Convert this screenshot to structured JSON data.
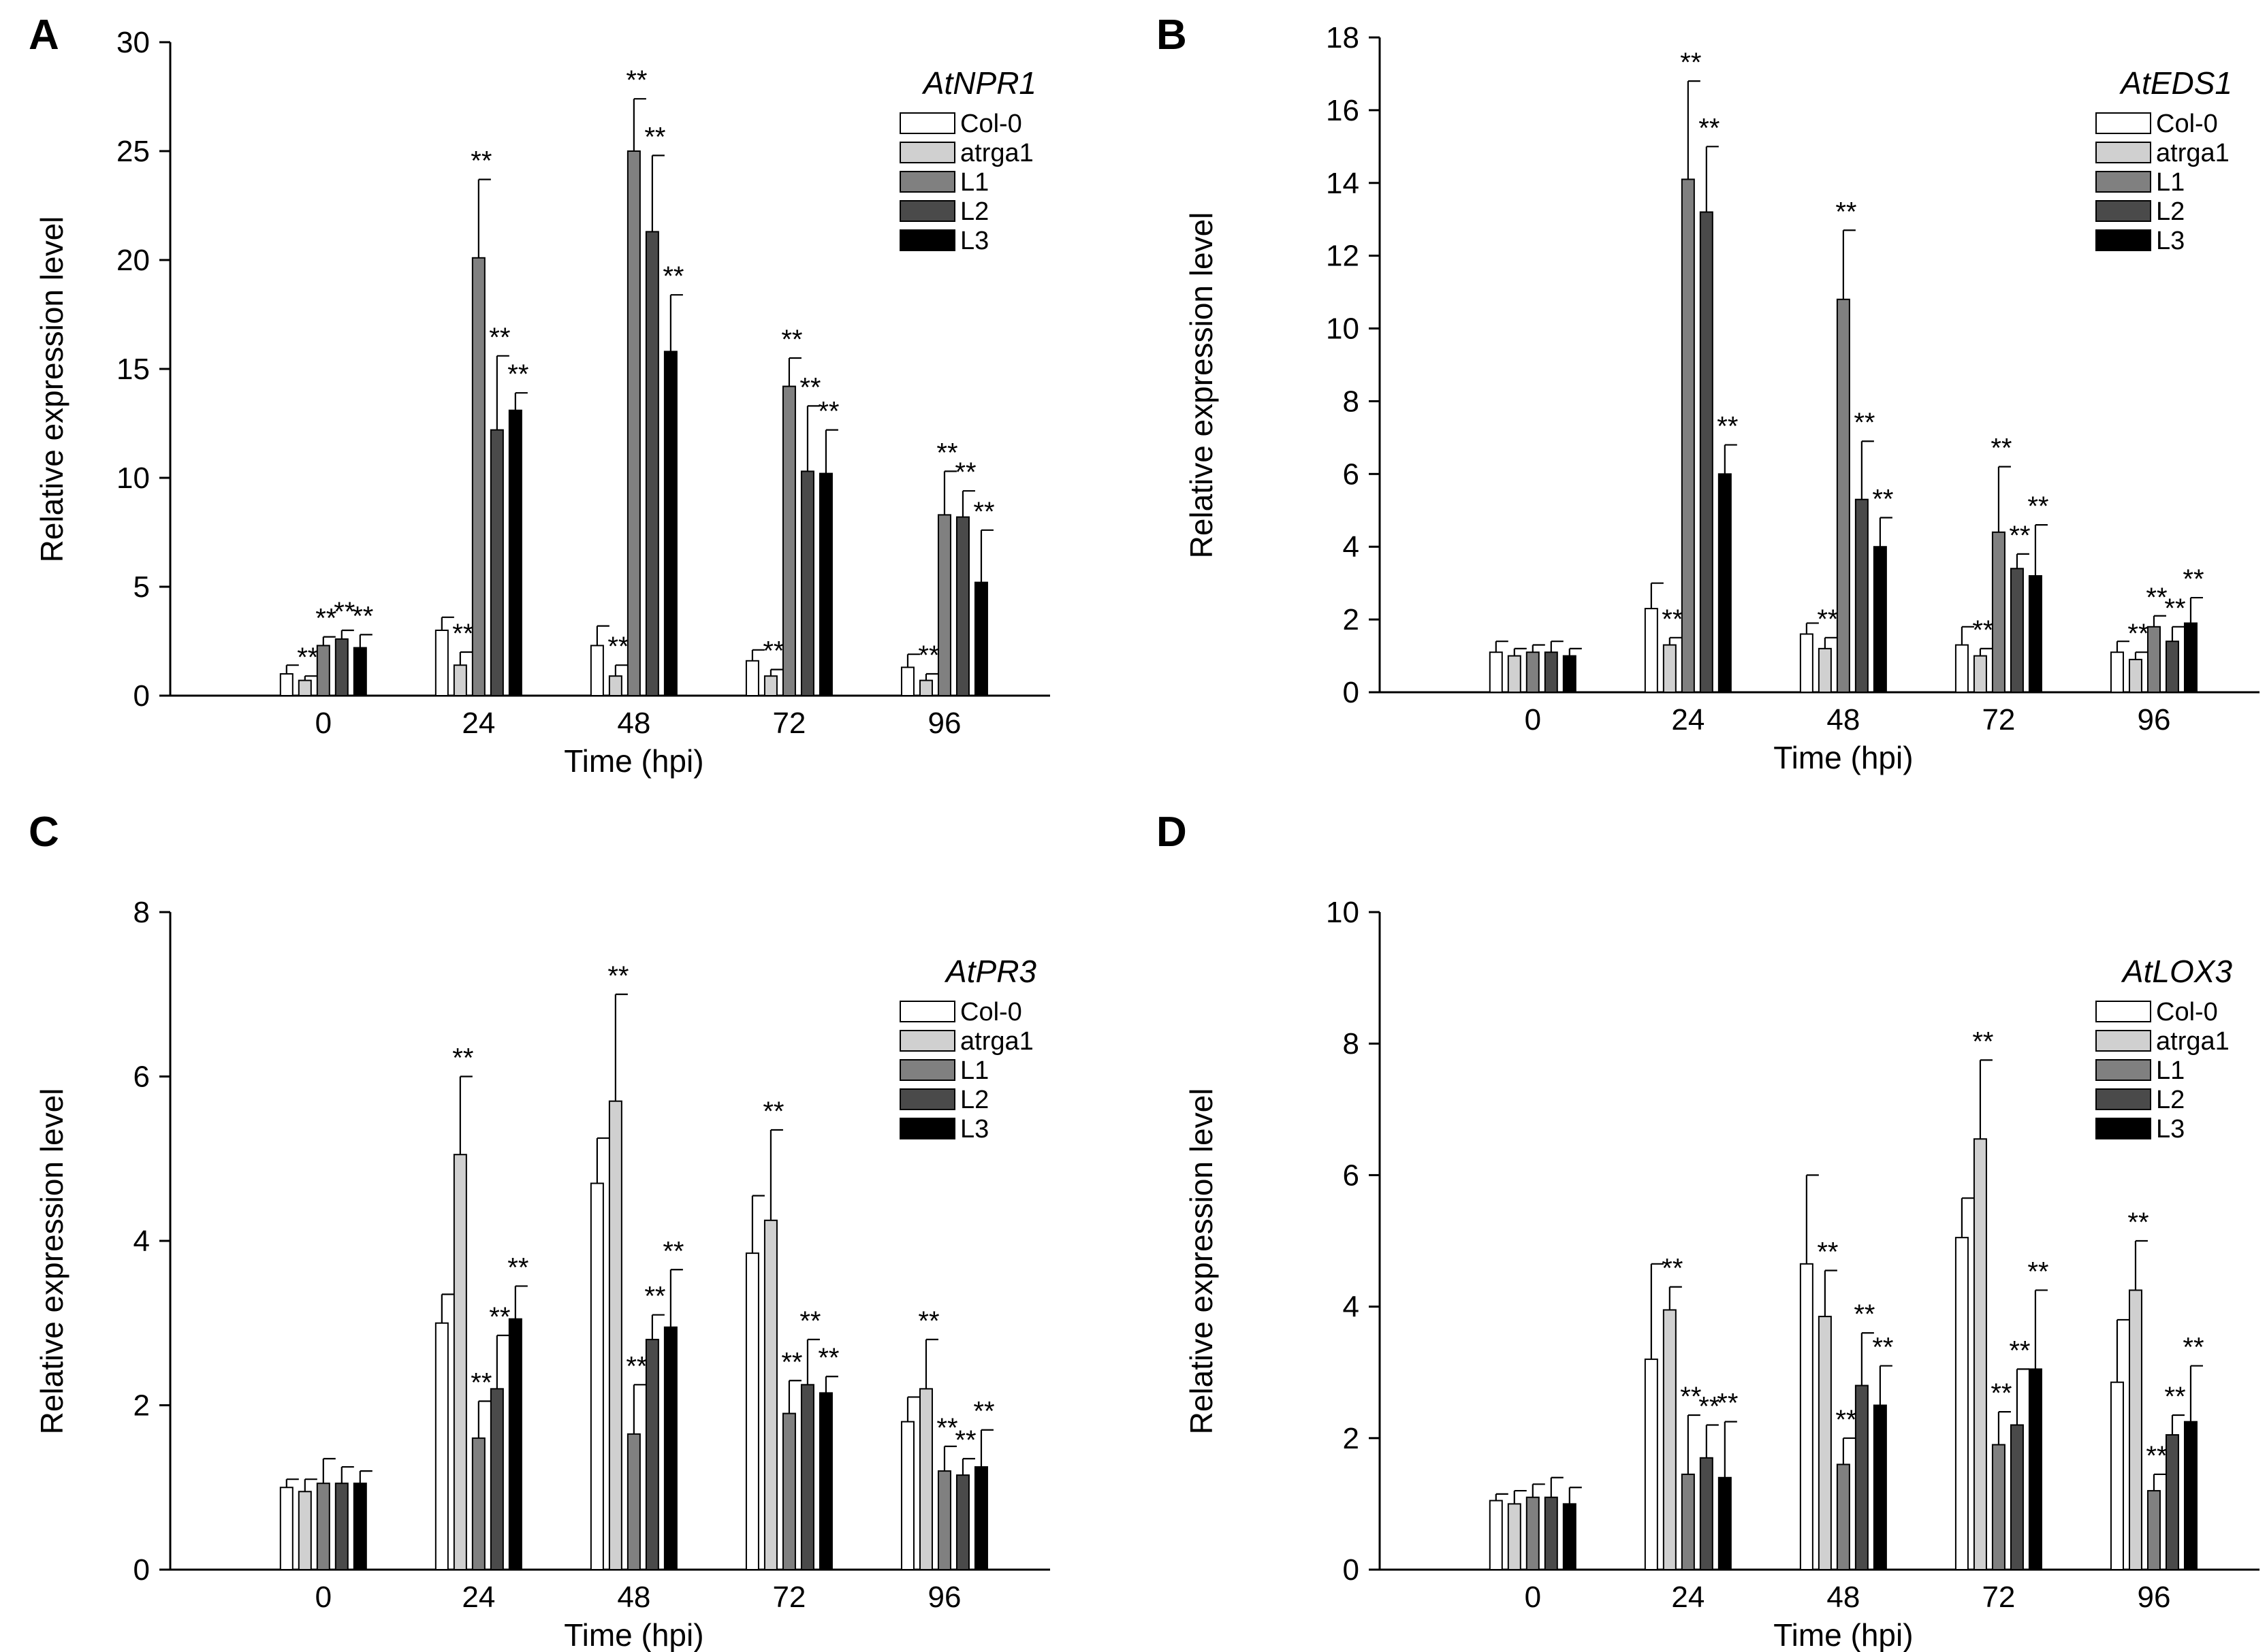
{
  "series_styles": [
    {
      "name": "Col-0",
      "color": "#ffffff"
    },
    {
      "name": "atrga1",
      "color": "#d0d0d0"
    },
    {
      "name": "L1",
      "color": "#808080"
    },
    {
      "name": "L2",
      "color": "#4a4a4a"
    },
    {
      "name": "L3",
      "color": "#000000"
    }
  ],
  "chart_data": [
    {
      "panel": "A",
      "type": "bar",
      "title": "AtNPR1",
      "xlabel": "Time (hpi)",
      "ylabel": "Relative expression level",
      "ylim": [
        0,
        30
      ],
      "yticks": [
        0,
        5,
        10,
        15,
        20,
        25,
        30
      ],
      "categories": [
        "0",
        "24",
        "48",
        "72",
        "96"
      ],
      "sig_marker": "**",
      "series": [
        {
          "name": "Col-0",
          "values": [
            1.0,
            3.0,
            2.3,
            1.6,
            1.3
          ],
          "errors": [
            0.4,
            0.6,
            0.9,
            0.5,
            0.6
          ],
          "significant": [
            false,
            false,
            false,
            false,
            false
          ]
        },
        {
          "name": "atrga1",
          "values": [
            0.7,
            1.4,
            0.9,
            0.9,
            0.7
          ],
          "errors": [
            0.2,
            0.6,
            0.5,
            0.3,
            0.3
          ],
          "significant": [
            true,
            true,
            true,
            true,
            true
          ]
        },
        {
          "name": "L1",
          "values": [
            2.3,
            20.1,
            25.0,
            14.2,
            8.3
          ],
          "errors": [
            0.4,
            3.6,
            2.4,
            1.3,
            2.0
          ],
          "significant": [
            true,
            true,
            true,
            true,
            true
          ]
        },
        {
          "name": "L2",
          "values": [
            2.6,
            12.2,
            21.3,
            10.3,
            8.2
          ],
          "errors": [
            0.4,
            3.4,
            3.5,
            3.0,
            1.2
          ],
          "significant": [
            true,
            true,
            true,
            true,
            true
          ]
        },
        {
          "name": "L3",
          "values": [
            2.2,
            13.1,
            15.8,
            10.2,
            5.2
          ],
          "errors": [
            0.6,
            0.8,
            2.6,
            2.0,
            2.4
          ],
          "significant": [
            true,
            true,
            true,
            true,
            true
          ]
        }
      ]
    },
    {
      "panel": "B",
      "type": "bar",
      "title": "AtEDS1",
      "xlabel": "Time (hpi)",
      "ylabel": "Relative expression level",
      "ylim": [
        0,
        18
      ],
      "yticks": [
        0,
        2,
        4,
        6,
        8,
        10,
        12,
        14,
        16,
        18
      ],
      "categories": [
        "0",
        "24",
        "48",
        "72",
        "96"
      ],
      "sig_marker": "**",
      "series": [
        {
          "name": "Col-0",
          "values": [
            1.1,
            2.3,
            1.6,
            1.3,
            1.1
          ],
          "errors": [
            0.3,
            0.7,
            0.3,
            0.5,
            0.3
          ],
          "significant": [
            false,
            false,
            false,
            false,
            false
          ]
        },
        {
          "name": "atrga1",
          "values": [
            1.0,
            1.3,
            1.2,
            1.0,
            0.9
          ],
          "errors": [
            0.2,
            0.2,
            0.3,
            0.2,
            0.2
          ],
          "significant": [
            false,
            true,
            true,
            true,
            true
          ]
        },
        {
          "name": "L1",
          "values": [
            1.1,
            14.1,
            10.8,
            4.4,
            1.8
          ],
          "errors": [
            0.2,
            2.7,
            1.9,
            1.8,
            0.3
          ],
          "significant": [
            false,
            true,
            true,
            true,
            true
          ]
        },
        {
          "name": "L2",
          "values": [
            1.1,
            13.2,
            5.3,
            3.4,
            1.4
          ],
          "errors": [
            0.3,
            1.8,
            1.6,
            0.4,
            0.4
          ],
          "significant": [
            false,
            true,
            true,
            true,
            true
          ]
        },
        {
          "name": "L3",
          "values": [
            1.0,
            6.0,
            4.0,
            3.2,
            1.9
          ],
          "errors": [
            0.2,
            0.8,
            0.8,
            1.4,
            0.7
          ],
          "significant": [
            false,
            true,
            true,
            true,
            true
          ]
        }
      ]
    },
    {
      "panel": "C",
      "type": "bar",
      "title": "AtPR3",
      "xlabel": "Time (hpi)",
      "ylabel": "Relative expression level",
      "ylim": [
        0,
        8
      ],
      "yticks": [
        0,
        2,
        4,
        6,
        8
      ],
      "categories": [
        "0",
        "24",
        "48",
        "72",
        "96"
      ],
      "sig_marker": "**",
      "series": [
        {
          "name": "Col-0",
          "values": [
            1.0,
            3.0,
            4.7,
            3.85,
            1.8
          ],
          "errors": [
            0.1,
            0.35,
            0.55,
            0.7,
            0.3
          ],
          "significant": [
            false,
            false,
            false,
            false,
            false
          ]
        },
        {
          "name": "atrga1",
          "values": [
            0.95,
            5.05,
            5.7,
            4.25,
            2.2
          ],
          "errors": [
            0.15,
            0.95,
            1.3,
            1.1,
            0.6
          ],
          "significant": [
            false,
            true,
            true,
            true,
            true
          ]
        },
        {
          "name": "L1",
          "values": [
            1.05,
            1.6,
            1.65,
            1.9,
            1.2
          ],
          "errors": [
            0.3,
            0.45,
            0.6,
            0.4,
            0.3
          ],
          "significant": [
            false,
            true,
            true,
            true,
            true
          ]
        },
        {
          "name": "L2",
          "values": [
            1.05,
            2.2,
            2.8,
            2.25,
            1.15
          ],
          "errors": [
            0.2,
            0.65,
            0.3,
            0.55,
            0.2
          ],
          "significant": [
            false,
            true,
            true,
            true,
            true
          ]
        },
        {
          "name": "L3",
          "values": [
            1.05,
            3.05,
            2.95,
            2.15,
            1.25
          ],
          "errors": [
            0.15,
            0.4,
            0.7,
            0.2,
            0.45
          ],
          "significant": [
            false,
            true,
            true,
            true,
            true
          ]
        }
      ]
    },
    {
      "panel": "D",
      "type": "bar",
      "title": "AtLOX3",
      "xlabel": "Time (hpi)",
      "ylabel": "Relative expression level",
      "ylim": [
        0,
        10
      ],
      "yticks": [
        0,
        2,
        4,
        6,
        8,
        10
      ],
      "categories": [
        "0",
        "24",
        "48",
        "72",
        "96"
      ],
      "sig_marker": "**",
      "series": [
        {
          "name": "Col-0",
          "values": [
            1.05,
            3.2,
            4.65,
            5.05,
            2.85
          ],
          "errors": [
            0.1,
            1.45,
            1.35,
            0.6,
            0.95
          ],
          "significant": [
            false,
            false,
            false,
            false,
            false
          ]
        },
        {
          "name": "atrga1",
          "values": [
            1.0,
            3.95,
            3.85,
            6.55,
            4.25
          ],
          "errors": [
            0.2,
            0.35,
            0.7,
            1.2,
            0.75
          ],
          "significant": [
            false,
            true,
            true,
            true,
            true
          ]
        },
        {
          "name": "L1",
          "values": [
            1.1,
            1.45,
            1.6,
            1.9,
            1.2
          ],
          "errors": [
            0.2,
            0.9,
            0.4,
            0.5,
            0.25
          ],
          "significant": [
            false,
            true,
            true,
            true,
            true
          ]
        },
        {
          "name": "L2",
          "values": [
            1.1,
            1.7,
            2.8,
            2.2,
            2.05
          ],
          "errors": [
            0.3,
            0.5,
            0.8,
            0.85,
            0.3
          ],
          "significant": [
            false,
            true,
            true,
            true,
            true
          ]
        },
        {
          "name": "L3",
          "values": [
            1.0,
            1.4,
            2.5,
            3.05,
            2.25
          ],
          "errors": [
            0.25,
            0.85,
            0.6,
            1.2,
            0.85
          ],
          "significant": [
            false,
            true,
            true,
            true,
            true
          ]
        }
      ]
    }
  ]
}
